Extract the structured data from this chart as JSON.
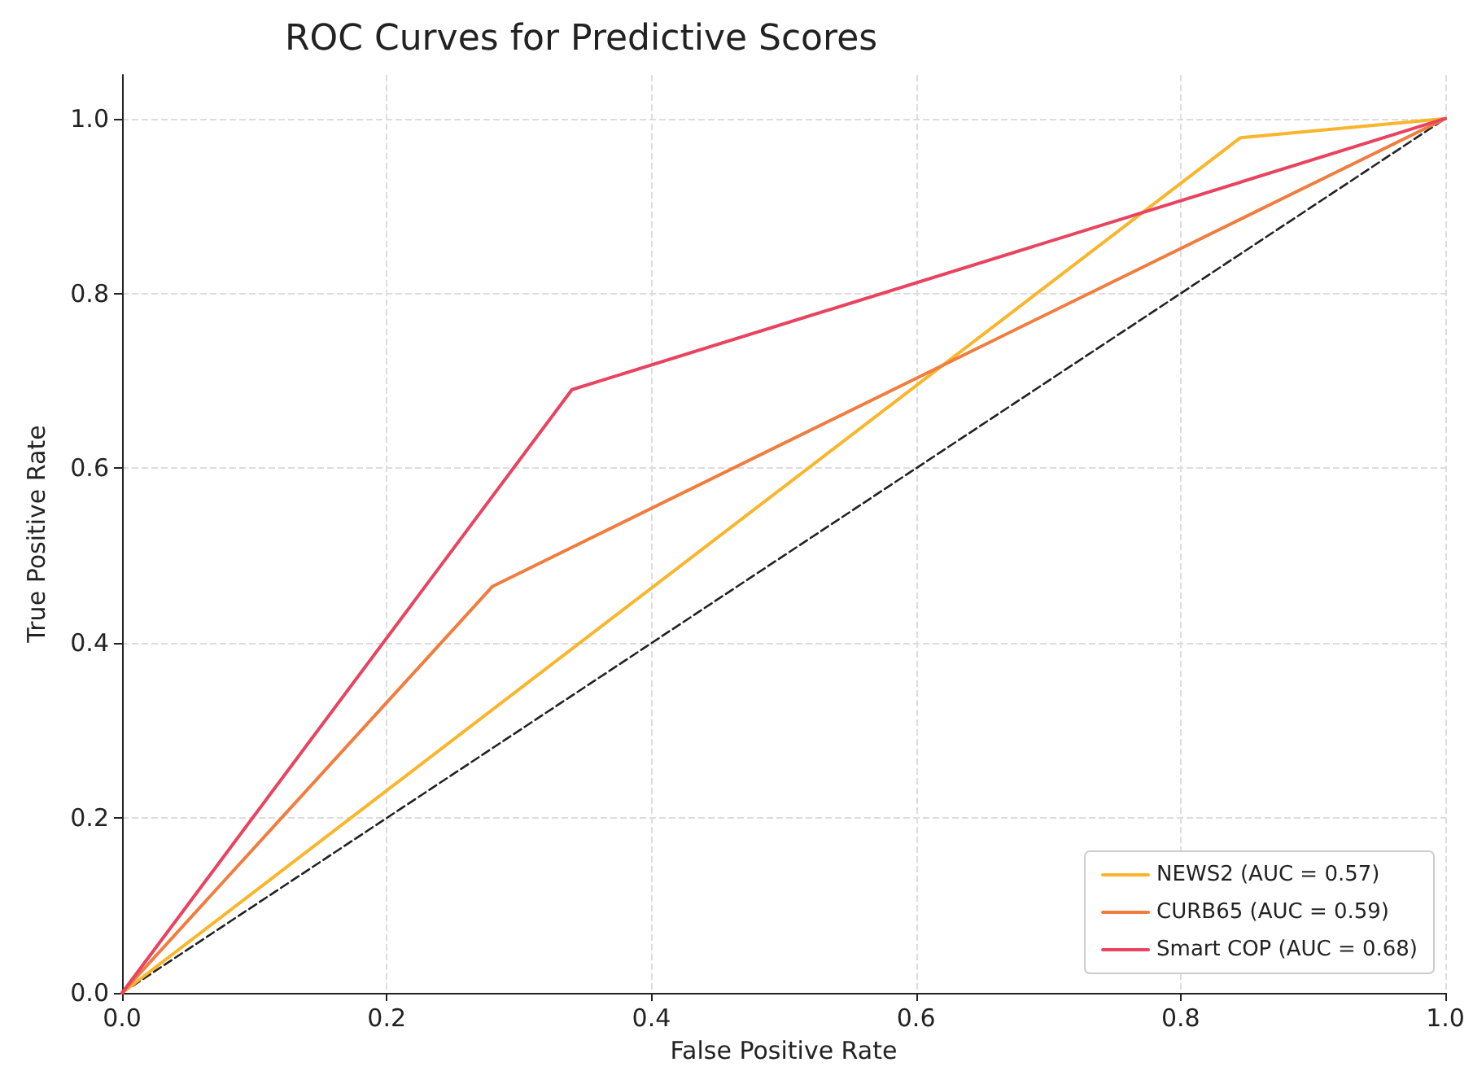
{
  "chart_data": {
    "type": "line",
    "title": "ROC Curves for Predictive Scores",
    "xlabel": "False Positive Rate",
    "ylabel": "True Positive Rate",
    "series": [
      {
        "name": "NEWS2 (AUC = 0.57)",
        "color": "#f9b52b",
        "x": [
          0,
          0.845,
          1
        ],
        "values": [
          0,
          0.978,
          1
        ]
      },
      {
        "name": "CURB65 (AUC = 0.59)",
        "color": "#f07d3e",
        "x": [
          0,
          0.28,
          1
        ],
        "values": [
          0,
          0.465,
          1
        ]
      },
      {
        "name": "Smart COP (AUC = 0.68)",
        "color": "#e8435f",
        "x": [
          0,
          0.34,
          1
        ],
        "values": [
          0,
          0.69,
          1
        ]
      },
      {
        "color": "#222222",
        "x": [
          0,
          1
        ],
        "values": [
          0,
          1
        ],
        "line_style": "dashed"
      }
    ],
    "xlim": [
      0,
      1
    ],
    "ylim": [
      0,
      1.05
    ],
    "xticks": [
      {
        "value": 0,
        "label": "0.0"
      },
      {
        "value": 0.2,
        "label": "0.2"
      },
      {
        "value": 0.4,
        "label": "0.4"
      },
      {
        "value": 0.6,
        "label": "0.6"
      },
      {
        "value": 0.8,
        "label": "0.8"
      },
      {
        "value": 1,
        "label": "1.0"
      }
    ],
    "yticks": [
      {
        "value": 0,
        "label": "0.0"
      },
      {
        "value": 0.2,
        "label": "0.2"
      },
      {
        "value": 0.4,
        "label": "0.4"
      },
      {
        "value": 0.6,
        "label": "0.6"
      },
      {
        "value": 0.8,
        "label": "0.8"
      },
      {
        "value": 1,
        "label": "1.0"
      }
    ],
    "grid": true,
    "legend": "bottom right",
    "marker": "none",
    "line_style": "solid"
  }
}
